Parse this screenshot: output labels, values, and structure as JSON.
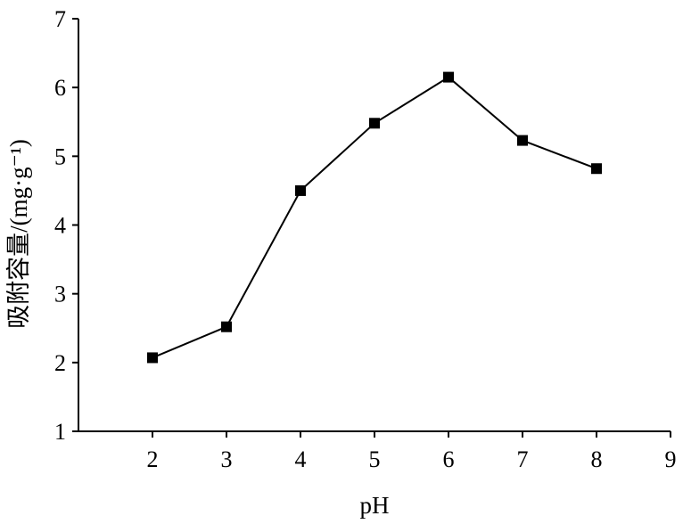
{
  "chart_data": {
    "type": "line",
    "xlabel": "pH",
    "ylabel": "吸附容量/(mg·g⁻¹)",
    "xlim": [
      1,
      9
    ],
    "ylim": [
      1,
      7
    ],
    "x_ticks": [
      "2",
      "3",
      "4",
      "5",
      "6",
      "7",
      "8",
      "9"
    ],
    "y_ticks": [
      "1",
      "2",
      "3",
      "4",
      "5",
      "6",
      "7"
    ],
    "grid": false,
    "series": [
      {
        "x": [
          2,
          3,
          4,
          5,
          6,
          7,
          8
        ],
        "y": [
          2.07,
          2.52,
          4.5,
          5.48,
          6.15,
          5.23,
          4.82
        ],
        "marker": "square",
        "color": "#000000"
      }
    ]
  }
}
